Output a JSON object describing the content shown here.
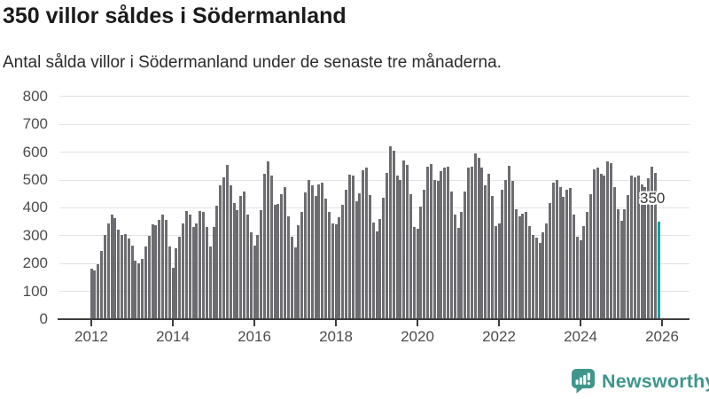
{
  "header": {
    "title": "350 villor såldes i Södermanland",
    "subtitle": "Antal sålda villor i Södermanland under de senaste tre månaderna."
  },
  "chart_data": {
    "type": "bar",
    "title": "350 villor såldes i Södermanland",
    "subtitle": "Antal sålda villor i Södermanland under de senaste tre månaderna.",
    "x_start": "2012-01",
    "x_end": "2025-12",
    "x_tick_labels": [
      "2012",
      "2014",
      "2016",
      "2018",
      "2020",
      "2022",
      "2024",
      "2026"
    ],
    "y_ticks": [
      0,
      100,
      200,
      300,
      400,
      500,
      600,
      700,
      800
    ],
    "ylim": [
      0,
      800
    ],
    "grid": true,
    "legend": "none",
    "bar_color": "#6d6d71",
    "highlight_color": "#14a09e",
    "highlight_index": 167,
    "annotation": {
      "text": "350",
      "value": 350
    },
    "values": [
      180,
      174,
      196,
      246,
      301,
      345,
      375,
      362,
      322,
      301,
      306,
      290,
      265,
      210,
      200,
      215,
      262,
      300,
      342,
      339,
      358,
      377,
      358,
      262,
      186,
      255,
      295,
      345,
      388,
      375,
      332,
      345,
      390,
      385,
      330,
      262,
      330,
      409,
      480,
      510,
      554,
      480,
      417,
      391,
      443,
      459,
      375,
      311,
      264,
      301,
      391,
      522,
      566,
      517,
      412,
      414,
      448,
      475,
      370,
      296,
      259,
      338,
      385,
      454,
      501,
      481,
      443,
      485,
      490,
      432,
      385,
      345,
      340,
      365,
      410,
      466,
      519,
      515,
      424,
      453,
      536,
      543,
      445,
      347,
      315,
      361,
      437,
      525,
      620,
      604,
      517,
      501,
      570,
      554,
      448,
      331,
      326,
      405,
      464,
      548,
      556,
      501,
      496,
      533,
      543,
      548,
      459,
      375,
      327,
      385,
      459,
      543,
      548,
      595,
      580,
      543,
      481,
      522,
      443,
      333,
      343,
      465,
      501,
      550,
      496,
      396,
      370,
      380,
      385,
      333,
      301,
      293,
      275,
      312,
      343,
      417,
      490,
      501,
      475,
      438,
      464,
      470,
      375,
      296,
      285,
      333,
      385,
      448,
      538,
      543,
      522,
      517,
      566,
      559,
      475,
      396,
      354,
      395,
      447,
      515,
      510,
      515,
      483,
      473,
      505,
      547,
      526,
      350
    ]
  },
  "footer": {
    "brand": "Newsworthy",
    "logo_icon": "newsworthy-chart-bubble-icon",
    "brand_color": "#3f968c"
  }
}
